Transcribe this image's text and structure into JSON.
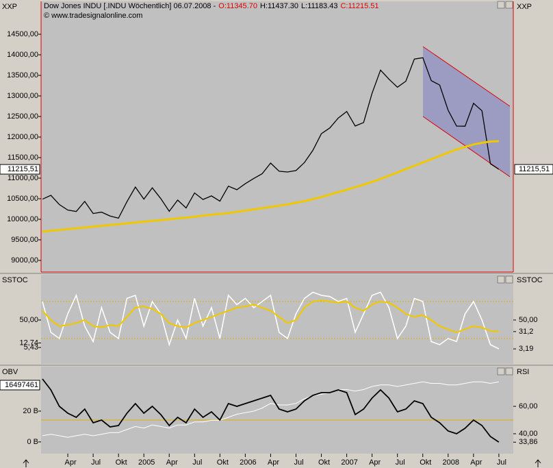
{
  "chart_data": {
    "type": "line",
    "title": "Dow Jones INDU [.INDU  Wöchentlich] 06.07.2008 -",
    "ohlc": [
      {
        "text": "O:11345.70",
        "color": "#e00000"
      },
      {
        "text": "H:11437.30",
        "color": "#000000"
      },
      {
        "text": "L:11183.43",
        "color": "#000000"
      },
      {
        "text": "C:11215.51",
        "color": "#e00000"
      }
    ],
    "copyright": "© www.tradesignalonline.com",
    "x": [
      "2004-01",
      "2004-02",
      "2004-03",
      "2004-04",
      "2004-05",
      "2004-06",
      "2004-07",
      "2004-08",
      "2004-09",
      "2004-10",
      "2004-11",
      "2004-12",
      "2005-01",
      "2005-02",
      "2005-03",
      "2005-04",
      "2005-05",
      "2005-06",
      "2005-07",
      "2005-08",
      "2005-09",
      "2005-10",
      "2005-11",
      "2005-12",
      "2006-01",
      "2006-02",
      "2006-03",
      "2006-04",
      "2006-05",
      "2006-06",
      "2006-07",
      "2006-08",
      "2006-09",
      "2006-10",
      "2006-11",
      "2006-12",
      "2007-01",
      "2007-02",
      "2007-03",
      "2007-04",
      "2007-05",
      "2007-06",
      "2007-07",
      "2007-08",
      "2007-09",
      "2007-10",
      "2007-11",
      "2007-12",
      "2008-01",
      "2008-02",
      "2008-03",
      "2008-04",
      "2008-05",
      "2008-06",
      "2008-07"
    ],
    "xticks": [
      {
        "value": "2004-04",
        "label": "Apr"
      },
      {
        "value": "2004-07",
        "label": "Jul"
      },
      {
        "value": "2004-10",
        "label": "Okt"
      },
      {
        "value": "2005-01",
        "label": "2005"
      },
      {
        "value": "2005-04",
        "label": "Apr"
      },
      {
        "value": "2005-07",
        "label": "Jul"
      },
      {
        "value": "2005-10",
        "label": "Okt"
      },
      {
        "value": "2006-01",
        "label": "2006"
      },
      {
        "value": "2006-04",
        "label": "Apr"
      },
      {
        "value": "2006-07",
        "label": "Jul"
      },
      {
        "value": "2006-10",
        "label": "Okt"
      },
      {
        "value": "2007-01",
        "label": "2007"
      },
      {
        "value": "2007-04",
        "label": "Apr"
      },
      {
        "value": "2007-07",
        "label": "Jul"
      },
      {
        "value": "2007-10",
        "label": "Okt"
      },
      {
        "value": "2008-01",
        "label": "2008"
      },
      {
        "value": "2008-04",
        "label": "Apr"
      },
      {
        "value": "2008-07",
        "label": "Jul"
      }
    ],
    "panels": [
      {
        "left_label": "XXP",
        "right_label": "XXP",
        "ylim": [
          8717,
          15300
        ],
        "yticks": [
          {
            "value": 9000,
            "label": "9000,00"
          },
          {
            "value": 9500,
            "label": "9500,00"
          },
          {
            "value": 10000,
            "label": "10000,00"
          },
          {
            "value": 10500,
            "label": "10500,00"
          },
          {
            "value": 11000,
            "label": "11000,00"
          },
          {
            "value": 11500,
            "label": "11500,00"
          },
          {
            "value": 12000,
            "label": "12000,00"
          },
          {
            "value": 12500,
            "label": "12500,00"
          },
          {
            "value": 13000,
            "label": "13000,00"
          },
          {
            "value": 13500,
            "label": "13500,00"
          },
          {
            "value": 14000,
            "label": "14000,00"
          },
          {
            "value": 14500,
            "label": "14500,00"
          }
        ],
        "last": {
          "value": 11215.51,
          "label": "11215,51"
        },
        "series": [
          {
            "name": "Close",
            "color": "#000000",
            "width": 1.3,
            "values": [
              10488,
              10584,
              10358,
              10226,
              10188,
              10435,
              10140,
              10174,
              10080,
              10027,
              10428,
              10783,
              10490,
              10766,
              10504,
              10193,
              10467,
              10275,
              10641,
              10482,
              10569,
              10440,
              10806,
              10718,
              10865,
              10993,
              11109,
              11367,
              11168,
              11150,
              11186,
              11381,
              11679,
              12081,
              12222,
              12463,
              12622,
              12269,
              12354,
              13063,
              13628,
              13409,
              13212,
              13358,
              13896,
              13930,
              13372,
              13265,
              12650,
              12266,
              12263,
              12820,
              12638,
              11350,
              11216
            ]
          },
          {
            "name": "MA",
            "color": "#f0c800",
            "width": 3,
            "values": [
              9700,
              9720,
              9740,
              9760,
              9780,
              9800,
              9820,
              9840,
              9860,
              9880,
              9900,
              9920,
              9940,
              9960,
              9980,
              10000,
              10020,
              10040,
              10060,
              10090,
              10110,
              10130,
              10150,
              10180,
              10210,
              10240,
              10270,
              10300,
              10330,
              10360,
              10400,
              10440,
              10490,
              10540,
              10600,
              10660,
              10720,
              10780,
              10840,
              10910,
              10980,
              11060,
              11140,
              11220,
              11300,
              11380,
              11460,
              11540,
              11620,
              11700,
              11760,
              11820,
              11860,
              11890,
              11900
            ]
          }
        ]
      },
      {
        "left_label": "SSTOC",
        "right_label": "SSTOC",
        "ylim": [
          -21.1,
          123.3
        ],
        "yticks": [
          {
            "value": 50,
            "label": "50,00"
          },
          {
            "value": 12.74,
            "label": "12,74"
          },
          {
            "value": 5.43,
            "label": "5,43"
          }
        ],
        "y2lim": [
          -21.1,
          123.3
        ],
        "y2ticks": [
          {
            "value": 50,
            "label": "50,00"
          },
          {
            "value": 31.2,
            "label": "31,2"
          },
          {
            "value": 3.19,
            "label": "3,19"
          }
        ],
        "hlines": [
          80,
          20
        ],
        "series": [
          {
            "name": "Stoch",
            "color": "#ffffff",
            "width": 1.6,
            "values": [
              80,
              30,
              20,
              60,
              90,
              40,
              15,
              70,
              30,
              20,
              85,
              90,
              40,
              80,
              60,
              10,
              50,
              20,
              85,
              40,
              70,
              20,
              90,
              75,
              85,
              70,
              80,
              90,
              30,
              20,
              60,
              85,
              95,
              90,
              88,
              80,
              85,
              30,
              60,
              90,
              95,
              70,
              20,
              40,
              85,
              80,
              15,
              10,
              20,
              15,
              60,
              80,
              50,
              10,
              3.19
            ]
          },
          {
            "name": "Signal",
            "color": "#f0c800",
            "width": 2.2,
            "values": [
              65,
              50,
              40,
              42,
              45,
              50,
              40,
              38,
              42,
              40,
              55,
              70,
              72,
              68,
              60,
              45,
              40,
              38,
              45,
              50,
              55,
              60,
              65,
              70,
              72,
              75,
              70,
              65,
              55,
              45,
              50,
              70,
              80,
              82,
              80,
              78,
              80,
              70,
              65,
              75,
              80,
              78,
              70,
              60,
              55,
              58,
              50,
              40,
              35,
              30,
              35,
              40,
              38,
              32,
              31.2
            ]
          }
        ]
      },
      {
        "left_label": "OBV",
        "right_label": "RSI",
        "current_label": "16497461",
        "ylim": [
          -7.6,
          48.9
        ],
        "yticks": [
          {
            "value": 0,
            "label": "0 B"
          },
          {
            "value": 20,
            "label": "20 B"
          }
        ],
        "y2lim": [
          25.5,
          89
        ],
        "y2ticks": [
          {
            "value": 40,
            "label": "40,00"
          },
          {
            "value": 60,
            "label": "60,00"
          },
          {
            "value": 33.86,
            "label": "33,86"
          }
        ],
        "hlines2": [
          50
        ],
        "series": [
          {
            "name": "OBV",
            "color": "#ffffff",
            "width": 1,
            "values": [
              4,
              5,
              4,
              3,
              4,
              5,
              4,
              5,
              6,
              6,
              8,
              10,
              9,
              11,
              10,
              9,
              11,
              11,
              13,
              13,
              14,
              14,
              16,
              18,
              19,
              20,
              22,
              25,
              24,
              24,
              25,
              28,
              30,
              31,
              32,
              34,
              34,
              33,
              34,
              36,
              37,
              37,
              36,
              37,
              38,
              39,
              38,
              38,
              37,
              37,
              38,
              39,
              39,
              38,
              39
            ]
          },
          {
            "name": "RSI",
            "color": "#000000",
            "width": 1.8,
            "axis": "y2",
            "values": [
              80,
              72,
              60,
              55,
              52,
              58,
              48,
              50,
              45,
              46,
              55,
              62,
              55,
              60,
              54,
              46,
              52,
              48,
              58,
              52,
              56,
              50,
              62,
              60,
              62,
              64,
              66,
              68,
              58,
              56,
              58,
              64,
              68,
              70,
              70,
              72,
              70,
              54,
              58,
              66,
              72,
              66,
              56,
              58,
              64,
              62,
              52,
              48,
              42,
              40,
              44,
              50,
              46,
              38,
              33.86
            ]
          }
        ]
      }
    ]
  }
}
